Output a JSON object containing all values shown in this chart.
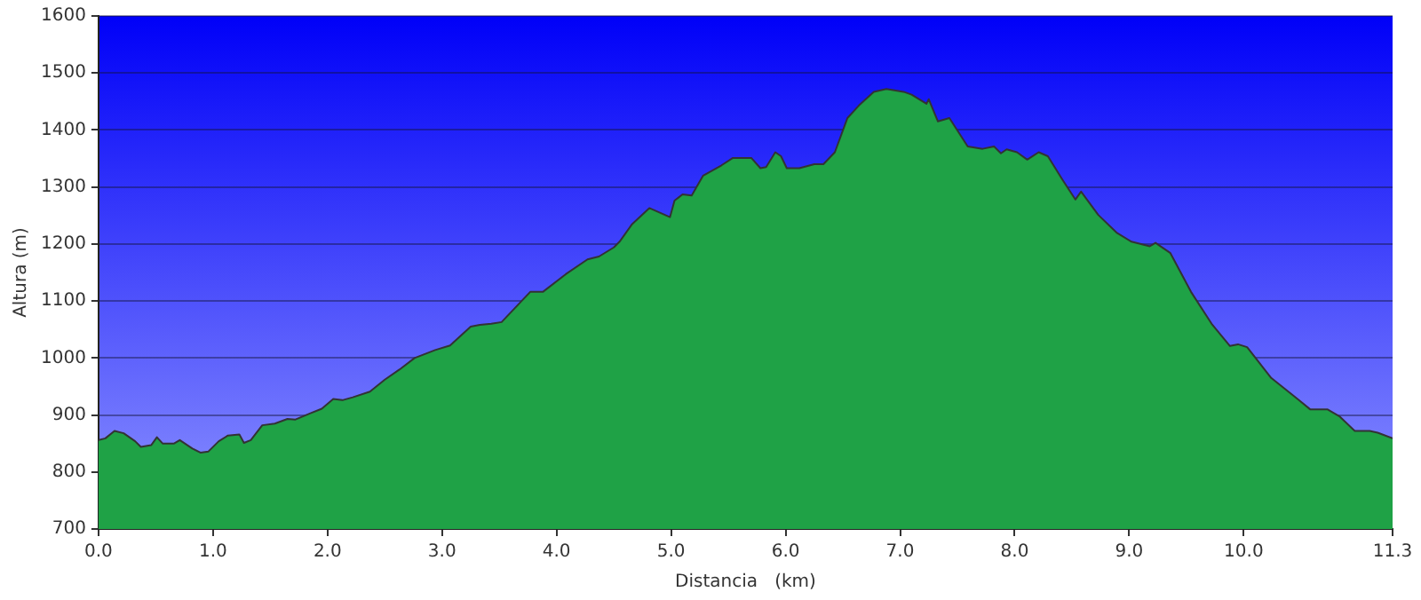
{
  "chart_data": {
    "type": "area",
    "xlabel": "Distancia   (km)",
    "ylabel": "Altura (m)",
    "x": [
      0,
      0.06,
      0.14,
      0.22,
      0.32,
      0.37,
      0.46,
      0.51,
      0.56,
      0.66,
      0.71,
      0.82,
      0.89,
      0.96,
      1.05,
      1.13,
      1.23,
      1.27,
      1.33,
      1.43,
      1.54,
      1.65,
      1.72,
      1.85,
      1.95,
      2.05,
      2.13,
      2.22,
      2.37,
      2.5,
      2.63,
      2.76,
      2.94,
      3.07,
      3.25,
      3.33,
      3.43,
      3.52,
      3.77,
      3.88,
      4.08,
      4.27,
      4.37,
      4.5,
      4.55,
      4.66,
      4.81,
      4.99,
      5.03,
      5.1,
      5.18,
      5.28,
      5.44,
      5.54,
      5.7,
      5.78,
      5.83,
      5.91,
      5.96,
      6.01,
      6.12,
      6.25,
      6.33,
      6.43,
      6.54,
      6.64,
      6.77,
      6.88,
      7.03,
      7.1,
      7.23,
      7.25,
      7.33,
      7.43,
      7.59,
      7.72,
      7.82,
      7.88,
      7.93,
      8.02,
      8.11,
      8.21,
      8.29,
      8.42,
      8.53,
      8.58,
      8.73,
      8.89,
      9.02,
      9.18,
      9.23,
      9.36,
      9.54,
      9.72,
      9.88,
      9.95,
      10.03,
      10.24,
      10.47,
      10.58,
      10.73,
      10.84,
      10.97,
      11.1,
      11.17,
      11.3
    ],
    "series": [
      {
        "color": "#1fa246",
        "values": [
          856,
          859,
          872,
          868,
          854,
          844,
          847,
          861,
          850,
          850,
          856,
          841,
          834,
          836,
          854,
          864,
          866,
          851,
          856,
          882,
          885,
          893,
          892,
          903,
          911,
          928,
          926,
          931,
          941,
          962,
          980,
          1000,
          1014,
          1022,
          1055,
          1058,
          1060,
          1063,
          1116,
          1116,
          1147,
          1173,
          1178,
          1194,
          1204,
          1235,
          1263,
          1247,
          1276,
          1287,
          1285,
          1320,
          1338,
          1351,
          1351,
          1333,
          1335,
          1361,
          1354,
          1333,
          1333,
          1340,
          1340,
          1361,
          1421,
          1443,
          1467,
          1472,
          1467,
          1462,
          1446,
          1454,
          1415,
          1421,
          1371,
          1367,
          1371,
          1359,
          1366,
          1361,
          1348,
          1361,
          1354,
          1312,
          1278,
          1292,
          1251,
          1220,
          1204,
          1196,
          1202,
          1184,
          1116,
          1060,
          1021,
          1024,
          1019,
          965,
          928,
          910,
          910,
          897,
          872,
          872,
          869,
          859
        ]
      }
    ],
    "xlim": [
      0,
      11.3
    ],
    "ylim": [
      700,
      1600
    ],
    "xticks": [
      {
        "value": 0,
        "label": "0.0"
      },
      {
        "value": 1,
        "label": "1.0"
      },
      {
        "value": 2,
        "label": "2.0"
      },
      {
        "value": 3,
        "label": "3.0"
      },
      {
        "value": 4,
        "label": "4.0"
      },
      {
        "value": 5,
        "label": "5.0"
      },
      {
        "value": 6,
        "label": "6.0"
      },
      {
        "value": 7,
        "label": "7.0"
      },
      {
        "value": 8,
        "label": "8.0"
      },
      {
        "value": 9,
        "label": "9.0"
      },
      {
        "value": 10,
        "label": "10.0"
      },
      {
        "value": 11.3,
        "label": "11.3"
      }
    ],
    "yticks": [
      700,
      800,
      900,
      1000,
      1100,
      1200,
      1300,
      1400,
      1500,
      1600
    ],
    "grid": "y",
    "legend": false,
    "marker": "none",
    "line_style": "solid"
  }
}
